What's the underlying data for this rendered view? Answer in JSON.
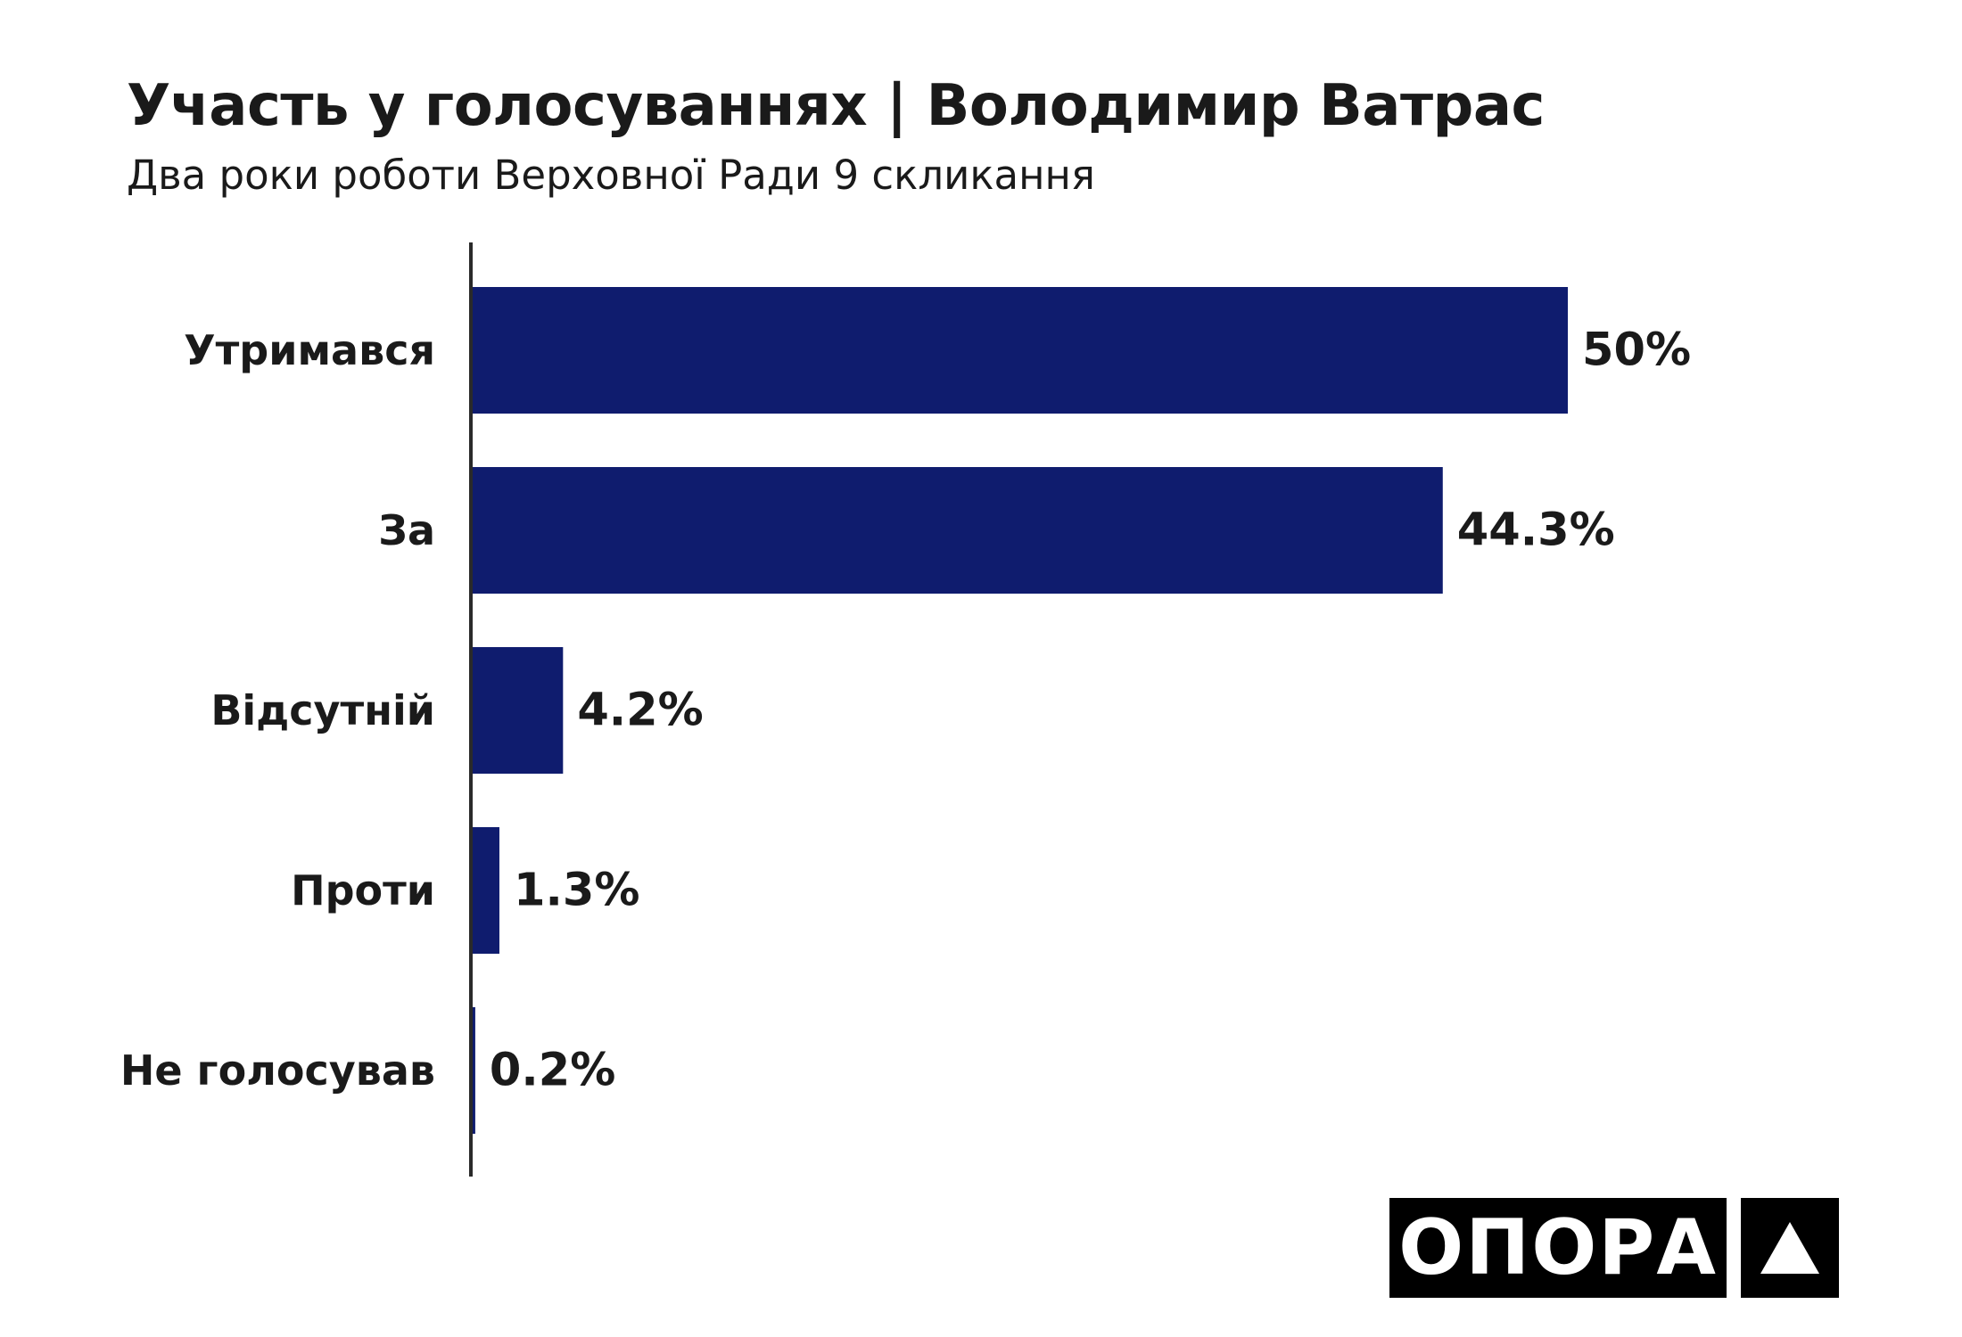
{
  "title": "Участь у голосуваннях | Володимир Ватрас",
  "subtitle": "Два роки роботи Верховної Ради 9 скликання",
  "logo": {
    "text": "ОПОРА",
    "mark": "triangle-icon"
  },
  "colors": {
    "bar": "#0f1c6e",
    "text": "#1a1a1a",
    "axis": "#2a2a2a",
    "logo_bg": "#000000",
    "logo_fg": "#ffffff"
  },
  "chart_data": {
    "type": "bar",
    "orientation": "horizontal",
    "categories": [
      "Утримався",
      "За",
      "Відсутній",
      "Проти",
      "Не голосував"
    ],
    "values": [
      50,
      44.3,
      4.2,
      1.3,
      0.2
    ],
    "value_labels": [
      "50%",
      "44.3%",
      "4.2%",
      "1.3%",
      "0.2%"
    ],
    "title": "Участь у голосуваннях | Володимир Ватрас",
    "subtitle": "Два роки роботи Верховної Ради 9 скликання",
    "xlim": [
      0,
      50
    ],
    "grid": false,
    "legend": false
  }
}
